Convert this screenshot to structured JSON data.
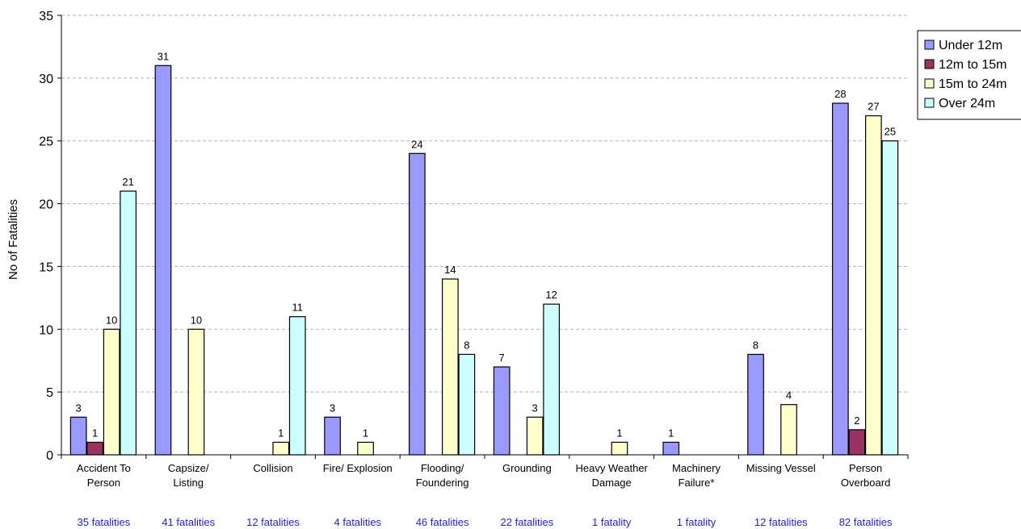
{
  "chart_data": {
    "type": "bar",
    "title": "",
    "xlabel": "",
    "ylabel": "No of Fatalities",
    "ylim": [
      0,
      35
    ],
    "yticks": [
      0,
      5,
      10,
      15,
      20,
      25,
      30,
      35
    ],
    "grid": true,
    "legend_position": "right",
    "categories": [
      [
        "Accident To",
        "Person"
      ],
      [
        "Capsize/",
        "Listing"
      ],
      [
        "Collision"
      ],
      [
        "Fire/ Explosion"
      ],
      [
        "Flooding/",
        "Foundering"
      ],
      [
        "Grounding"
      ],
      [
        "Heavy Weather",
        "Damage"
      ],
      [
        "Machinery",
        "Failure*"
      ],
      [
        "Missing Vessel"
      ],
      [
        "Person",
        "Overboard"
      ]
    ],
    "category_totals": [
      "35 fatalities",
      "41 fatalities",
      "12 fatalities",
      "4 fatalities",
      "46 fatalities",
      "22 fatalities",
      "1 fatality",
      "1 fatality",
      "12 fatalities",
      "82 fatalities"
    ],
    "series": [
      {
        "name": "Under 12m",
        "color": "#9999ff",
        "values": [
          3,
          31,
          null,
          3,
          24,
          7,
          null,
          1,
          8,
          28
        ]
      },
      {
        "name": "12m to 15m",
        "color": "#993366",
        "values": [
          1,
          null,
          null,
          null,
          null,
          null,
          null,
          null,
          null,
          2
        ]
      },
      {
        "name": "15m to 24m",
        "color": "#ffffcc",
        "values": [
          10,
          10,
          1,
          1,
          14,
          3,
          1,
          null,
          4,
          27
        ]
      },
      {
        "name": "Over 24m",
        "color": "#ccffff",
        "values": [
          21,
          null,
          11,
          null,
          8,
          12,
          null,
          null,
          null,
          25
        ]
      }
    ]
  }
}
